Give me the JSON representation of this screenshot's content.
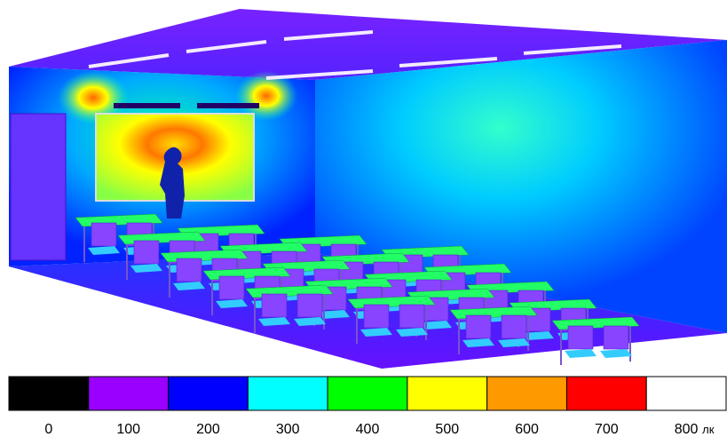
{
  "legend": {
    "levels": [
      0,
      100,
      200,
      300,
      400,
      500,
      600,
      700,
      800
    ],
    "unit": "лк",
    "colors": [
      "#000000",
      "#9900ff",
      "#0000ff",
      "#00ffff",
      "#00ff00",
      "#ffff00",
      "#ff9900",
      "#ff0000",
      "#ffffff"
    ]
  }
}
